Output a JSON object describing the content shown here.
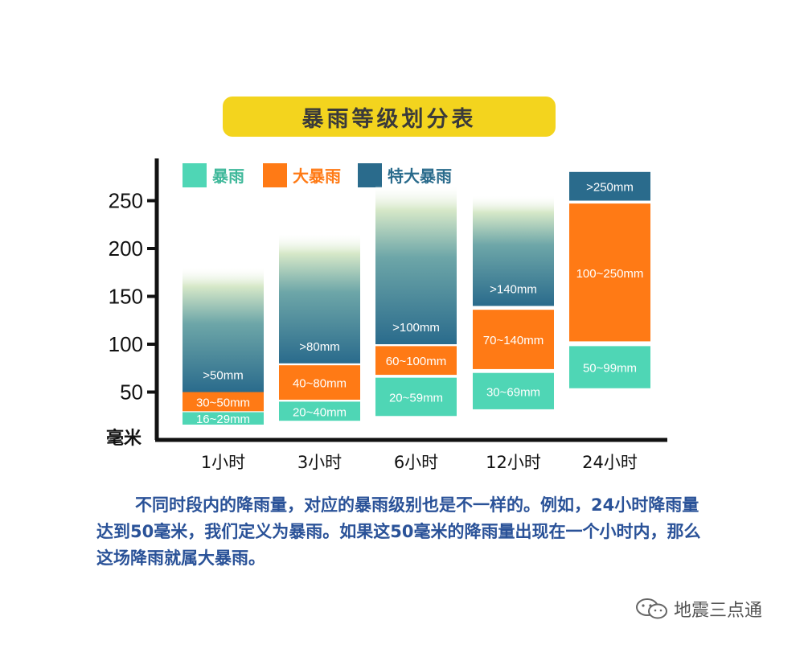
{
  "chart_data": {
    "type": "bar",
    "title": "暴雨等级划分表",
    "ylabel": "毫米",
    "yticks": [
      50,
      100,
      150,
      200,
      250
    ],
    "ylim": [
      0,
      290
    ],
    "legend": [
      {
        "name": "暴雨",
        "color": "#4fd6b5"
      },
      {
        "name": "大暴雨",
        "color": "#ff7a15"
      },
      {
        "name": "特大暴雨",
        "color": "#2a6b8c"
      }
    ],
    "categories": [
      "1小时",
      "3小时",
      "6小时",
      "12小时",
      "24小时"
    ],
    "segments": [
      [
        {
          "level": "暴雨",
          "label": "16~29mm",
          "from": 16,
          "to": 29
        },
        {
          "level": "大暴雨",
          "label": "30~50mm",
          "from": 30,
          "to": 50
        },
        {
          "level": "特大暴雨",
          "label": ">50mm",
          "from": 50,
          "to": 180,
          "open": true
        }
      ],
      [
        {
          "level": "暴雨",
          "label": "20~40mm",
          "from": 20,
          "to": 40
        },
        {
          "level": "大暴雨",
          "label": "40~80mm",
          "from": 42,
          "to": 78
        },
        {
          "level": "特大暴雨",
          "label": ">80mm",
          "from": 80,
          "to": 215,
          "open": true
        }
      ],
      [
        {
          "level": "暴雨",
          "label": "20~59mm",
          "from": 25,
          "to": 65
        },
        {
          "level": "大暴雨",
          "label": "60~100mm",
          "from": 68,
          "to": 98
        },
        {
          "level": "特大暴雨",
          "label": ">100mm",
          "from": 100,
          "to": 265,
          "open": true
        }
      ],
      [
        {
          "level": "暴雨",
          "label": "30~69mm",
          "from": 32,
          "to": 70
        },
        {
          "level": "大暴雨",
          "label": "70~140mm",
          "from": 74,
          "to": 136
        },
        {
          "level": "特大暴雨",
          "label": ">140mm",
          "from": 140,
          "to": 255,
          "open": true
        }
      ],
      [
        {
          "level": "暴雨",
          "label": "50~99mm",
          "from": 54,
          "to": 98
        },
        {
          "level": "大暴雨",
          "label": "100~250mm",
          "from": 103,
          "to": 247
        },
        {
          "level": "特大暴雨",
          "label": ">250mm",
          "from": 250,
          "to": 280,
          "open": true
        }
      ]
    ]
  },
  "caption": "不同时段内的降雨量，对应的暴雨级别也是不一样的。例如，24小时降雨量达到50毫米，我们定义为暴雨。如果这50毫米的降雨量出现在一个小时内，那么这场降雨就属大暴雨。",
  "watermark": "地震三点通"
}
